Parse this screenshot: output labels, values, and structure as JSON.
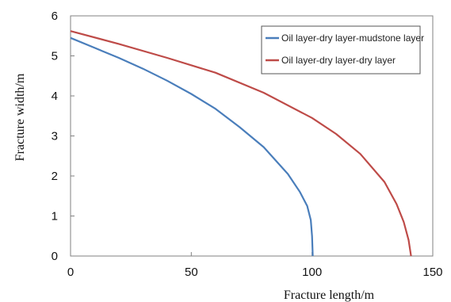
{
  "chart_data": {
    "type": "line",
    "xlabel": "Fracture length/m",
    "ylabel": "Fracture width/m",
    "xlim": [
      0,
      150
    ],
    "ylim": [
      0,
      6
    ],
    "x_ticks": [
      "0",
      "50",
      "100",
      "150"
    ],
    "y_ticks": [
      "0",
      "1",
      "2",
      "3",
      "4",
      "5",
      "6"
    ],
    "grid": false,
    "legend_position": "top-right",
    "series": [
      {
        "name": "Oil layer-dry layer-mudstone layer",
        "color": "#4a7ebb",
        "x": [
          0,
          10,
          20,
          30,
          40,
          50,
          60,
          70,
          80,
          90,
          95,
          98,
          99.5,
          100,
          100.3
        ],
        "y": [
          5.45,
          5.2,
          4.95,
          4.68,
          4.38,
          4.05,
          3.68,
          3.22,
          2.72,
          2.05,
          1.6,
          1.25,
          0.9,
          0.5,
          0
        ]
      },
      {
        "name": "Oil layer-dry layer-dry layer",
        "color": "#be4b48",
        "x": [
          0,
          20,
          40,
          60,
          80,
          100,
          110,
          120,
          130,
          135,
          138,
          140,
          141
        ],
        "y": [
          5.62,
          5.3,
          4.95,
          4.58,
          4.08,
          3.45,
          3.05,
          2.55,
          1.85,
          1.3,
          0.85,
          0.4,
          0
        ]
      }
    ]
  }
}
